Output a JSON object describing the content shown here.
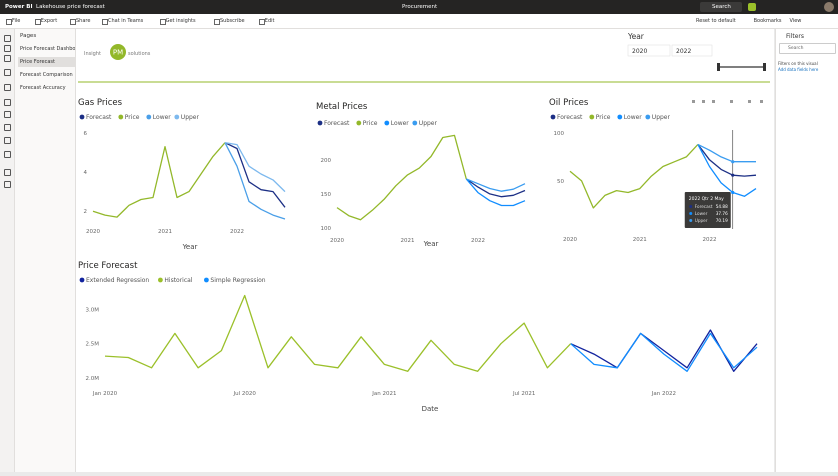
{
  "app": {
    "product": "Power BI",
    "report": "Lakehouse price forecast",
    "workspace": "Procurement",
    "search": "Search"
  },
  "toolbar": {
    "items": [
      "File",
      "Export",
      "Share",
      "Chat in Teams",
      "Get insights",
      "Subscribe",
      "Edit"
    ],
    "right": [
      "Reset to default",
      "Bookmarks",
      "View"
    ]
  },
  "pages": {
    "header": "Pages",
    "items": [
      "Price Forecast Dashboard",
      "Price Forecast",
      "Forecast Comparison",
      "Forecast Accuracy"
    ],
    "selected": 1
  },
  "logo": {
    "left": "Insight",
    "mark": "PM",
    "right": "solutions"
  },
  "slicer": {
    "title": "Year",
    "from": "2020",
    "to": "2022"
  },
  "filters": {
    "title": "Filters",
    "search": "Search",
    "note": "Filters on this visual",
    "link": "Add data fields here"
  },
  "chart_data": [
    {
      "type": "line",
      "title": "Gas Prices",
      "xlabel": "Year",
      "categories": [
        "2020",
        null,
        null,
        null,
        null,
        null,
        "2021",
        null,
        null,
        null,
        null,
        null,
        "2022",
        null,
        null,
        null,
        null
      ],
      "series": [
        {
          "name": "Forecast",
          "color": "#1c2f85",
          "values": [
            null,
            null,
            null,
            null,
            null,
            null,
            null,
            null,
            null,
            null,
            null,
            5.5,
            5.2,
            3.5,
            3.1,
            3.0,
            2.2
          ]
        },
        {
          "name": "Price",
          "color": "#93b82a",
          "values": [
            2.0,
            1.8,
            1.7,
            2.3,
            2.6,
            2.7,
            5.3,
            2.7,
            3.0,
            3.9,
            4.8,
            5.5,
            null,
            null,
            null,
            null,
            null
          ]
        },
        {
          "name": "Lower",
          "color": "#4a9fe8",
          "values": [
            null,
            null,
            null,
            null,
            null,
            null,
            null,
            null,
            null,
            null,
            null,
            5.5,
            4.3,
            2.5,
            2.1,
            1.8,
            1.6
          ]
        },
        {
          "name": "Upper",
          "color": "#7db9ee",
          "values": [
            null,
            null,
            null,
            null,
            null,
            null,
            null,
            null,
            null,
            null,
            null,
            5.5,
            5.4,
            4.3,
            3.9,
            3.6,
            3.0
          ]
        }
      ],
      "ylim": [
        1.5,
        6.3
      ],
      "yticks": [
        2,
        4,
        6
      ],
      "grid": false
    },
    {
      "type": "line",
      "title": "Metal Prices",
      "xlabel": "Year",
      "categories": [
        "2020",
        null,
        null,
        null,
        null,
        null,
        "2021",
        null,
        null,
        null,
        null,
        null,
        "2022",
        null,
        null,
        null,
        null
      ],
      "series": [
        {
          "name": "Forecast",
          "color": "#1c2f85",
          "values": [
            null,
            null,
            null,
            null,
            null,
            null,
            null,
            null,
            null,
            null,
            null,
            172,
            160,
            150,
            146,
            148,
            155
          ]
        },
        {
          "name": "Price",
          "color": "#93b82a",
          "values": [
            130,
            118,
            112,
            126,
            142,
            162,
            178,
            188,
            205,
            233,
            236,
            172,
            null,
            null,
            null,
            null,
            null
          ]
        },
        {
          "name": "Lower",
          "color": "#118dff",
          "values": [
            null,
            null,
            null,
            null,
            null,
            null,
            null,
            null,
            null,
            null,
            null,
            172,
            152,
            140,
            133,
            133,
            140
          ]
        },
        {
          "name": "Upper",
          "color": "#3a9cf0",
          "values": [
            null,
            null,
            null,
            null,
            null,
            null,
            null,
            null,
            null,
            null,
            null,
            172,
            165,
            158,
            154,
            157,
            165
          ]
        }
      ],
      "ylim": [
        97,
        244
      ],
      "yticks": [
        100,
        150,
        200
      ],
      "grid": false
    },
    {
      "type": "line",
      "title": "Oil Prices",
      "categories": [
        "2020",
        null,
        null,
        null,
        null,
        null,
        "2021",
        null,
        null,
        null,
        null,
        null,
        "2022",
        null,
        null,
        null,
        null
      ],
      "series": [
        {
          "name": "Forecast",
          "color": "#1c2f85",
          "values": [
            null,
            null,
            null,
            null,
            null,
            null,
            null,
            null,
            null,
            null,
            null,
            88,
            72,
            62,
            56,
            55,
            56
          ]
        },
        {
          "name": "Price",
          "color": "#93b82a",
          "values": [
            60,
            50,
            22,
            35,
            40,
            38,
            42,
            55,
            65,
            70,
            75,
            88,
            null,
            null,
            null,
            null,
            null
          ]
        },
        {
          "name": "Lower",
          "color": "#118dff",
          "values": [
            null,
            null,
            null,
            null,
            null,
            null,
            null,
            null,
            null,
            null,
            null,
            88,
            65,
            48,
            38,
            34,
            42
          ]
        },
        {
          "name": "Upper",
          "color": "#3a9cf0",
          "values": [
            null,
            null,
            null,
            null,
            null,
            null,
            null,
            null,
            null,
            null,
            null,
            88,
            82,
            75,
            70,
            70,
            70
          ]
        }
      ],
      "ylim": [
        0,
        103
      ],
      "yticks": [
        50,
        100
      ],
      "grid": false,
      "tooltip": {
        "title": "2022 Qtr 2 May",
        "items": [
          {
            "name": "Forecast",
            "value": "54.88"
          },
          {
            "name": "Lower",
            "value": "37.76"
          },
          {
            "name": "Upper",
            "value": "70.19"
          }
        ]
      }
    },
    {
      "type": "line",
      "title": "Price Forecast",
      "xlabel": "Date",
      "categories": [
        "Jan 2020",
        null,
        null,
        null,
        null,
        null,
        "Jul 2020",
        null,
        null,
        null,
        null,
        null,
        "Jan 2021",
        null,
        null,
        null,
        null,
        null,
        "Jul 2021",
        null,
        null,
        null,
        null,
        null,
        "Jan 2022",
        null,
        null,
        null,
        null
      ],
      "series": [
        {
          "name": "Extended Regression",
          "color": "#12239e",
          "values": [
            null,
            null,
            null,
            null,
            null,
            null,
            null,
            null,
            null,
            null,
            null,
            null,
            null,
            null,
            null,
            null,
            null,
            null,
            null,
            null,
            2500000,
            2350000,
            2150000,
            2650000,
            2400000,
            2150000,
            2700000,
            2100000,
            2500000
          ]
        },
        {
          "name": "Historical",
          "color": "#9bc02a",
          "values": [
            2320000,
            2300000,
            2150000,
            2650000,
            2150000,
            2400000,
            3200000,
            2150000,
            2600000,
            2200000,
            2150000,
            2600000,
            2200000,
            2100000,
            2550000,
            2200000,
            2100000,
            2500000,
            2800000,
            2150000,
            2500000,
            null,
            null,
            null,
            null,
            null,
            null,
            null,
            null
          ]
        },
        {
          "name": "Simple Regression",
          "color": "#118dff",
          "values": [
            null,
            null,
            null,
            null,
            null,
            null,
            null,
            null,
            null,
            null,
            null,
            null,
            null,
            null,
            null,
            null,
            null,
            null,
            null,
            null,
            2500000,
            2200000,
            2150000,
            2650000,
            2350000,
            2100000,
            2650000,
            2150000,
            2450000
          ]
        }
      ],
      "ylim": [
        1930000,
        3280000
      ],
      "yticks": [
        {
          "value": 2000000,
          "label": "2.0M"
        },
        {
          "value": 2500000,
          "label": "2.5M"
        },
        {
          "value": 3000000,
          "label": "3.0M"
        }
      ],
      "grid": false
    }
  ]
}
